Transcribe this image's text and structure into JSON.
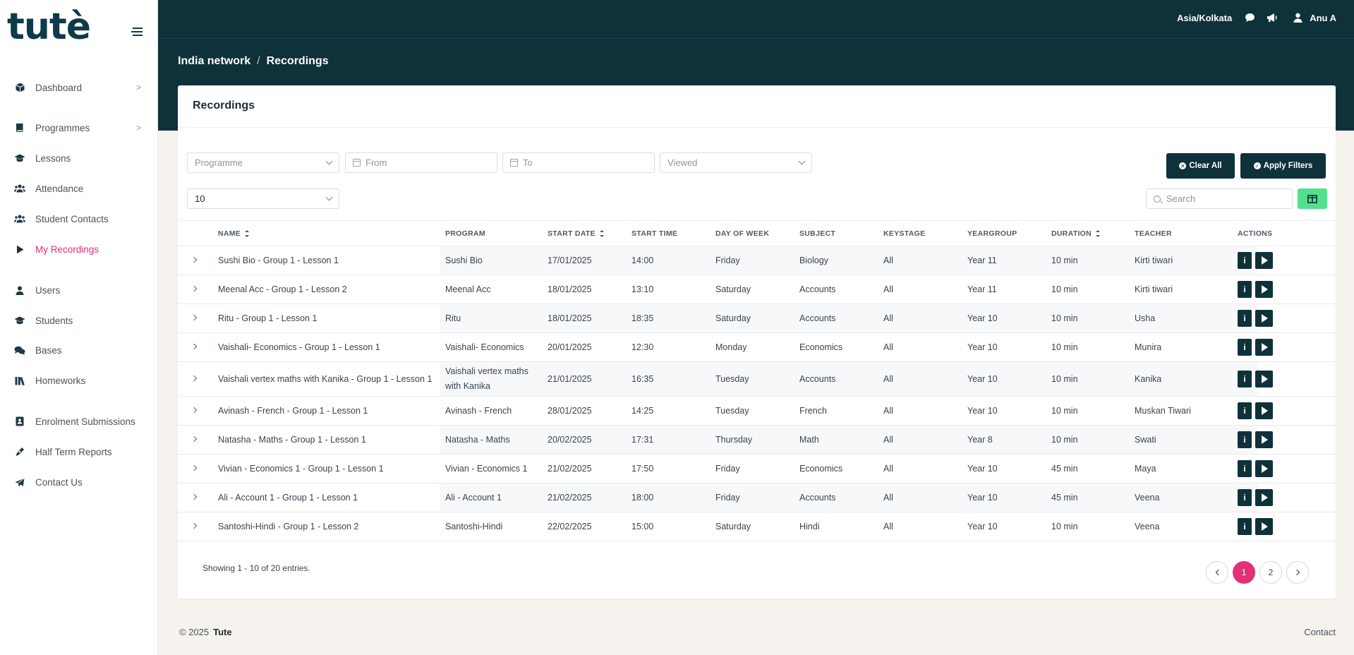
{
  "brand": {
    "logo_text": "tutè"
  },
  "colors": {
    "sidebar_bg": "#ffffff",
    "topbar_bg": "#0f313a",
    "accent_pink": "#e22f77",
    "accent_green": "#52e08e",
    "button_dark": "#0f313a"
  },
  "sidebar": {
    "items": [
      {
        "label": "Dashboard",
        "icon": "cube-icon",
        "has_submenu": true
      },
      {
        "label": "Programmes",
        "icon": "book-icon",
        "has_submenu": true
      },
      {
        "label": "Lessons",
        "icon": "graduation-cap-icon"
      },
      {
        "label": "Attendance",
        "icon": "users-icon"
      },
      {
        "label": "Student Contacts",
        "icon": "users-icon"
      },
      {
        "label": "My Recordings",
        "icon": "play-icon",
        "active": true
      },
      {
        "label": "Users",
        "icon": "user-icon"
      },
      {
        "label": "Students",
        "icon": "graduation-cap-icon"
      },
      {
        "label": "Bases",
        "icon": "chat-bubbles-icon"
      },
      {
        "label": "Homeworks",
        "icon": "library-icon"
      },
      {
        "label": "Enrolment Submissions",
        "icon": "address-book-icon"
      },
      {
        "label": "Half Term Reports",
        "icon": "pen-icon"
      },
      {
        "label": "Contact Us",
        "icon": "paper-plane-icon"
      }
    ],
    "submenu_indicator": ">"
  },
  "header": {
    "timezone": "Asia/Kolkata",
    "user_name": "Anu A"
  },
  "breadcrumb": {
    "parent": "India network",
    "separator": "/",
    "current": "Recordings"
  },
  "card": {
    "title": "Recordings"
  },
  "filters": {
    "programme_placeholder": "Programme",
    "from_placeholder": "From",
    "to_placeholder": "To",
    "viewed_placeholder": "Viewed",
    "clear_all_label": "Clear All",
    "apply_filters_label": "Apply Filters",
    "page_size": "10",
    "search_placeholder": "Search"
  },
  "table": {
    "columns": [
      "NAME",
      "PROGRAM",
      "START DATE",
      "START TIME",
      "DAY OF WEEK",
      "SUBJECT",
      "KEYSTAGE",
      "YEARGROUP",
      "DURATION",
      "TEACHER",
      "ACTIONS"
    ],
    "sortable": [
      "NAME",
      "START DATE",
      "DURATION"
    ],
    "rows": [
      {
        "name": "Sushi Bio - Group 1 - Lesson 1",
        "program": "Sushi Bio",
        "start_date": "17/01/2025",
        "start_time": "14:00",
        "day": "Friday",
        "subject": "Biology",
        "keystage": "All",
        "yeargroup": "Year 11",
        "duration": "10 min",
        "teacher": "Kirti tiwari"
      },
      {
        "name": "Meenal Acc - Group 1 - Lesson 2",
        "program": "Meenal Acc",
        "start_date": "18/01/2025",
        "start_time": "13:10",
        "day": "Saturday",
        "subject": "Accounts",
        "keystage": "All",
        "yeargroup": "Year 11",
        "duration": "10 min",
        "teacher": "Kirti tiwari"
      },
      {
        "name": "Ritu - Group 1 - Lesson 1",
        "program": "Ritu",
        "start_date": "18/01/2025",
        "start_time": "18:35",
        "day": "Saturday",
        "subject": "Accounts",
        "keystage": "All",
        "yeargroup": "Year 10",
        "duration": "10 min",
        "teacher": "Usha"
      },
      {
        "name": "Vaishali- Economics - Group 1 - Lesson 1",
        "program": "Vaishali- Economics",
        "start_date": "20/01/2025",
        "start_time": "12:30",
        "day": "Monday",
        "subject": "Economics",
        "keystage": "All",
        "yeargroup": "Year 10",
        "duration": "10 min",
        "teacher": "Munira"
      },
      {
        "name": "Vaishali vertex maths with Kanika - Group 1 - Lesson 1",
        "program": "Vaishali vertex maths with Kanika",
        "start_date": "21/01/2025",
        "start_time": "16:35",
        "day": "Tuesday",
        "subject": "Accounts",
        "keystage": "All",
        "yeargroup": "Year 10",
        "duration": "10 min",
        "teacher": "Kanika"
      },
      {
        "name": "Avinash - French - Group 1 - Lesson 1",
        "program": "Avinash - French",
        "start_date": "28/01/2025",
        "start_time": "14:25",
        "day": "Tuesday",
        "subject": "French",
        "keystage": "All",
        "yeargroup": "Year 10",
        "duration": "10 min",
        "teacher": "Muskan Tiwari"
      },
      {
        "name": "Natasha - Maths - Group 1 - Lesson 1",
        "program": "Natasha - Maths",
        "start_date": "20/02/2025",
        "start_time": "17:31",
        "day": "Thursday",
        "subject": "Math",
        "keystage": "All",
        "yeargroup": "Year 8",
        "duration": "10 min",
        "teacher": "Swati"
      },
      {
        "name": "Vivian - Economics 1 - Group 1 - Lesson 1",
        "program": "Vivian - Economics 1",
        "start_date": "21/02/2025",
        "start_time": "17:50",
        "day": "Friday",
        "subject": "Economics",
        "keystage": "All",
        "yeargroup": "Year 10",
        "duration": "45 min",
        "teacher": "Maya"
      },
      {
        "name": "Ali - Account 1 - Group 1 - Lesson 1",
        "program": "Ali - Account 1",
        "start_date": "21/02/2025",
        "start_time": "18:00",
        "day": "Friday",
        "subject": "Accounts",
        "keystage": "All",
        "yeargroup": "Year 10",
        "duration": "45 min",
        "teacher": "Veena"
      },
      {
        "name": "Santoshi-Hindi - Group 1 - Lesson 2",
        "program": "Santoshi-Hindi",
        "start_date": "22/02/2025",
        "start_time": "15:00",
        "day": "Saturday",
        "subject": "Hindi",
        "keystage": "All",
        "yeargroup": "Year 10",
        "duration": "10 min",
        "teacher": "Veena"
      }
    ],
    "action_info_label": "i"
  },
  "pagination": {
    "summary": "Showing 1 - 10 of 20 entries.",
    "pages": [
      "1",
      "2"
    ],
    "current_page": "1"
  },
  "footer": {
    "copyright": "© 2025",
    "brand": "Tute",
    "contact_link": "Contact"
  }
}
